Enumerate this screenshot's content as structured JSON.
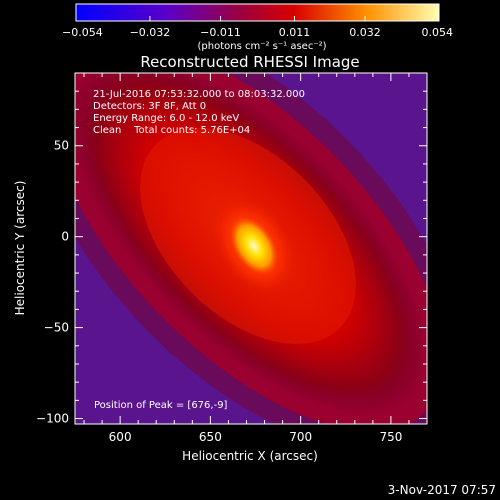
{
  "chart_data": {
    "type": "heatmap",
    "title": "Reconstructed RHESSI Image",
    "xlabel": "Heliocentric X (arcsec)",
    "ylabel": "Heliocentric Y (arcsec)",
    "xlim": [
      575,
      770
    ],
    "ylim": [
      -103,
      90
    ],
    "x_ticks": [
      600,
      650,
      700,
      750
    ],
    "y_ticks": [
      50,
      0,
      -50,
      -100
    ],
    "x_tick_labels": [
      "600",
      "650",
      "700",
      "750"
    ],
    "y_tick_labels": [
      "50",
      "0",
      "−50",
      "−100"
    ],
    "colorbar": {
      "min": -0.054,
      "max": 0.054,
      "ticks": [
        -0.054,
        -0.032,
        -0.011,
        0.011,
        0.032,
        0.054
      ],
      "tick_labels": [
        "−0.054",
        "−0.032",
        "−0.011",
        "0.011",
        "0.032",
        "0.054"
      ],
      "units_label": "(photons cm⁻² s⁻¹ asec⁻²)"
    },
    "annotations": [
      "21-Jul-2016 07:53:32.000 to 08:03:32.000",
      "Detectors: 3F 8F, Att 0",
      "Energy Range: 6.0 - 12.0 keV",
      "Clean    Total counts: 5.76E+04"
    ],
    "peak_label": "Position of Peak = [676,-9]",
    "peak": [
      676,
      -9
    ],
    "grid": false
  },
  "footer": {
    "date": "3-Nov-2017 07:57"
  }
}
